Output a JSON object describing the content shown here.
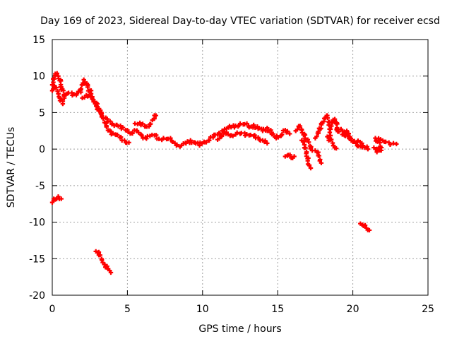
{
  "chart_data": {
    "type": "scatter",
    "title": "Day 169 of 2023, Sidereal Day-to-day VTEC variation (SDTVAR) for receiver ecsd",
    "xlabel": "GPS time / hours",
    "ylabel": "SDTVAR / TECUs",
    "xlim": [
      0,
      25
    ],
    "ylim": [
      -20,
      15
    ],
    "x_ticks": [
      0,
      5,
      10,
      15,
      20,
      25
    ],
    "y_ticks": [
      15,
      10,
      5,
      0,
      -5,
      -10,
      -15,
      -20
    ],
    "grid": true,
    "series_color": "#ff0000",
    "marker": "plus",
    "series": [
      {
        "name": "main-trace-early",
        "points": [
          [
            0.0,
            8.0
          ],
          [
            0.2,
            10.3
          ],
          [
            0.4,
            10.0
          ],
          [
            0.6,
            8.5
          ],
          [
            0.8,
            7.0
          ],
          [
            1.0,
            7.6
          ],
          [
            1.3,
            7.7
          ],
          [
            1.6,
            7.4
          ],
          [
            1.9,
            7.8
          ],
          [
            2.1,
            9.5
          ],
          [
            2.3,
            9.0
          ],
          [
            2.5,
            8.0
          ],
          [
            2.8,
            6.5
          ],
          [
            3.1,
            5.3
          ],
          [
            3.4,
            4.3
          ],
          [
            3.7,
            3.8
          ],
          [
            4.0,
            3.5
          ],
          [
            4.3,
            3.3
          ],
          [
            4.6,
            2.8
          ],
          [
            5.0,
            2.6
          ],
          [
            5.3,
            2.2
          ],
          [
            5.6,
            2.5
          ],
          [
            5.9,
            2.0
          ],
          [
            6.2,
            1.6
          ],
          [
            6.5,
            1.8
          ],
          [
            6.8,
            1.9
          ],
          [
            7.1,
            1.4
          ],
          [
            7.4,
            1.5
          ],
          [
            7.7,
            1.4
          ],
          [
            8.0,
            1.0
          ],
          [
            8.3,
            0.6
          ],
          [
            8.6,
            0.5
          ],
          [
            8.9,
            0.8
          ],
          [
            9.2,
            1.2
          ],
          [
            9.5,
            0.9
          ],
          [
            9.8,
            0.5
          ],
          [
            10.1,
            1.0
          ],
          [
            10.4,
            1.2
          ],
          [
            10.7,
            1.6
          ],
          [
            11.0,
            2.0
          ],
          [
            11.3,
            2.5
          ],
          [
            11.6,
            2.8
          ],
          [
            11.9,
            3.0
          ],
          [
            12.2,
            3.2
          ],
          [
            12.5,
            3.5
          ],
          [
            12.8,
            3.4
          ],
          [
            13.1,
            3.0
          ],
          [
            13.4,
            3.3
          ],
          [
            13.7,
            2.8
          ],
          [
            14.0,
            2.5
          ],
          [
            14.3,
            2.9
          ],
          [
            14.6,
            2.2
          ],
          [
            14.9,
            1.5
          ],
          [
            15.2,
            1.8
          ],
          [
            15.5,
            2.6
          ],
          [
            15.8,
            2.1
          ]
        ]
      },
      {
        "name": "main-trace-low",
        "points": [
          [
            2.0,
            7.0
          ],
          [
            2.4,
            7.3
          ],
          [
            2.7,
            6.8
          ],
          [
            3.0,
            5.8
          ],
          [
            3.3,
            4.5
          ],
          [
            3.6,
            3.2
          ],
          [
            3.9,
            2.4
          ],
          [
            4.2,
            2.0
          ],
          [
            4.5,
            1.6
          ],
          [
            4.8,
            1.2
          ],
          [
            5.1,
            0.9
          ]
        ]
      },
      {
        "name": "branch-upper",
        "points": [
          [
            5.5,
            3.5
          ],
          [
            5.9,
            3.3
          ],
          [
            6.2,
            3.1
          ],
          [
            6.5,
            3.4
          ],
          [
            6.8,
            4.2
          ],
          [
            6.9,
            4.6
          ]
        ]
      },
      {
        "name": "branch-left",
        "points": [
          [
            0.0,
            8.8
          ],
          [
            0.2,
            8.4
          ],
          [
            0.4,
            7.6
          ],
          [
            0.5,
            7.0
          ],
          [
            0.7,
            6.2
          ]
        ]
      },
      {
        "name": "ripple-mid",
        "points": [
          [
            11.0,
            1.3
          ],
          [
            11.3,
            1.9
          ],
          [
            11.6,
            2.3
          ],
          [
            11.9,
            1.9
          ],
          [
            12.2,
            2.0
          ],
          [
            12.5,
            2.1
          ],
          [
            12.8,
            2.2
          ],
          [
            13.1,
            1.9
          ],
          [
            13.4,
            1.8
          ],
          [
            13.7,
            1.6
          ],
          [
            14.0,
            1.2
          ],
          [
            14.3,
            0.8
          ]
        ]
      },
      {
        "name": "segment-16-17",
        "points": [
          [
            16.2,
            2.5
          ],
          [
            16.4,
            3.1
          ],
          [
            16.6,
            2.6
          ],
          [
            16.8,
            1.5
          ],
          [
            17.0,
            1.3
          ],
          [
            17.2,
            0.2
          ],
          [
            17.3,
            -0.2
          ]
        ]
      },
      {
        "name": "segment-16-17b",
        "points": [
          [
            16.6,
            1.2
          ],
          [
            16.8,
            0.2
          ],
          [
            16.9,
            -0.6
          ],
          [
            17.0,
            -1.6
          ],
          [
            17.1,
            -2.2
          ],
          [
            17.2,
            -2.6
          ]
        ]
      },
      {
        "name": "segment-15-dip",
        "points": [
          [
            15.5,
            -1.0
          ],
          [
            15.7,
            -0.8
          ],
          [
            15.9,
            -1.2
          ],
          [
            16.1,
            -1.0
          ]
        ]
      },
      {
        "name": "segment-18",
        "points": [
          [
            17.5,
            1.5
          ],
          [
            17.7,
            2.4
          ],
          [
            17.9,
            3.5
          ],
          [
            18.1,
            4.2
          ],
          [
            18.3,
            4.6
          ],
          [
            18.4,
            3.3
          ]
        ]
      },
      {
        "name": "segment-18b",
        "points": [
          [
            17.5,
            -0.2
          ],
          [
            17.7,
            -0.9
          ],
          [
            17.8,
            -1.6
          ],
          [
            17.9,
            -1.9
          ]
        ]
      },
      {
        "name": "segment-18-19",
        "points": [
          [
            18.4,
            1.2
          ],
          [
            18.6,
            3.6
          ],
          [
            18.8,
            4.1
          ],
          [
            19.0,
            2.4
          ],
          [
            19.2,
            2.7
          ],
          [
            19.4,
            2.2
          ],
          [
            19.6,
            2.5
          ],
          [
            19.8,
            1.7
          ],
          [
            20.0,
            1.0
          ],
          [
            20.2,
            0.8
          ],
          [
            20.5,
            0.4
          ],
          [
            20.8,
            0.2
          ],
          [
            21.0,
            0.0
          ]
        ]
      },
      {
        "name": "segment-18-19c",
        "points": [
          [
            18.3,
            1.7
          ],
          [
            18.5,
            1.3
          ],
          [
            18.7,
            0.5
          ],
          [
            18.9,
            0.1
          ]
        ]
      },
      {
        "name": "segment-20",
        "points": [
          [
            19.3,
            2.0
          ],
          [
            19.5,
            1.8
          ],
          [
            19.8,
            1.4
          ],
          [
            20.1,
            1.1
          ],
          [
            20.3,
            1.0
          ],
          [
            20.6,
            0.8
          ]
        ]
      },
      {
        "name": "segment-21-23",
        "points": [
          [
            21.4,
            0.2
          ],
          [
            21.6,
            -0.4
          ],
          [
            21.9,
            0.2
          ],
          [
            21.5,
            1.5
          ],
          [
            21.8,
            1.2
          ],
          [
            22.1,
            1.0
          ],
          [
            22.4,
            0.9
          ],
          [
            22.7,
            0.8
          ],
          [
            22.9,
            0.7
          ]
        ]
      },
      {
        "name": "outlier-near-zero",
        "points": [
          [
            0.0,
            -7.3
          ],
          [
            0.1,
            -6.8
          ],
          [
            0.2,
            -6.9
          ],
          [
            0.4,
            -6.5
          ],
          [
            0.6,
            -6.8
          ]
        ]
      },
      {
        "name": "outlier-3-4",
        "points": [
          [
            2.9,
            -14.0
          ],
          [
            3.1,
            -14.5
          ],
          [
            3.3,
            -15.2
          ],
          [
            3.5,
            -15.8
          ],
          [
            3.7,
            -16.4
          ],
          [
            3.9,
            -16.9
          ]
        ]
      },
      {
        "name": "outlier-20-21",
        "points": [
          [
            20.5,
            -10.2
          ],
          [
            20.7,
            -10.5
          ],
          [
            20.9,
            -10.8
          ],
          [
            21.1,
            -11.1
          ]
        ]
      }
    ]
  }
}
